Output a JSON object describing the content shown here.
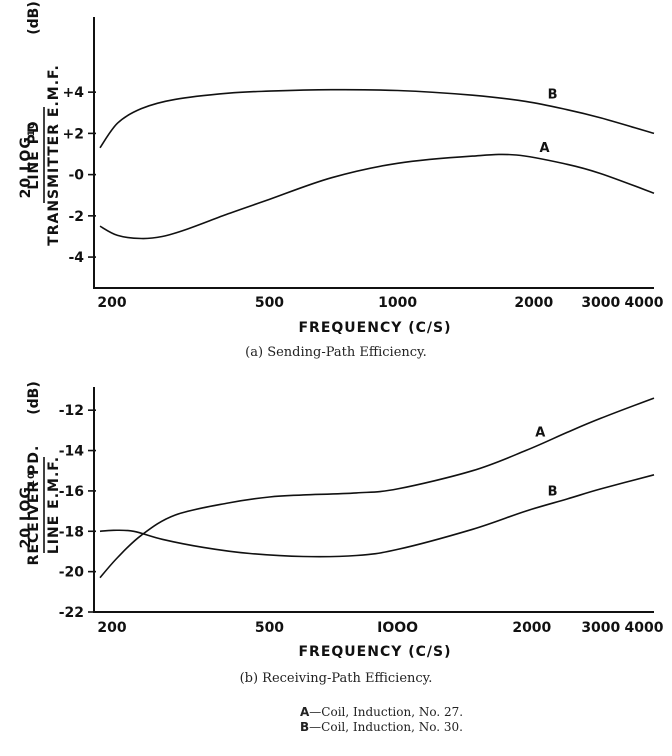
{
  "chart_data": [
    {
      "type": "line",
      "caption": "(a) Sending-Path Efficiency.",
      "xlabel": "FREQUENCY (C/S)",
      "ylabel": {
        "prefix": "20 LOG",
        "sub": "10",
        "numerator": "LINE PD",
        "denominator": "TRANSMITTER E.M.F.",
        "unit": "(dB)"
      },
      "xscale": "log",
      "xlim": [
        200,
        4000
      ],
      "ylim": [
        -5.5,
        7.5
      ],
      "xticks": [
        200,
        500,
        1000,
        2000,
        3000,
        4000
      ],
      "xtick_labels": [
        "200",
        "500",
        "1000",
        "2000",
        "3000",
        "4000"
      ],
      "yticks": [
        4,
        2,
        0,
        -2,
        -4
      ],
      "ytick_labels": [
        "+4",
        "+2",
        "-0",
        "-2",
        "-4"
      ],
      "grid": false,
      "series": [
        {
          "name": "A",
          "x": [
            200,
            220,
            250,
            280,
            320,
            400,
            500,
            700,
            1000,
            1500,
            1900,
            2500,
            3000,
            4000
          ],
          "y": [
            -2.5,
            -2.95,
            -3.1,
            -3.0,
            -2.65,
            -1.9,
            -1.2,
            -0.15,
            0.55,
            0.9,
            0.95,
            0.5,
            0.05,
            -0.9
          ]
        },
        {
          "name": "B",
          "x": [
            200,
            220,
            250,
            300,
            400,
            500,
            700,
            1000,
            1500,
            2000,
            2500,
            3000,
            4000
          ],
          "y": [
            1.3,
            2.5,
            3.2,
            3.65,
            3.95,
            4.05,
            4.12,
            4.08,
            3.85,
            3.55,
            3.15,
            2.75,
            2.0
          ]
        }
      ]
    },
    {
      "type": "line",
      "caption": "(b) Receiving-Path Efficiency.",
      "xlabel": "FREQUENCY (C/S)",
      "ylabel": {
        "prefix": "20 LOG",
        "sub": "10",
        "numerator": "RECEIVER PD.",
        "denominator": "LINE E.M.F.",
        "unit": "(dB)"
      },
      "xscale": "log",
      "xlim": [
        200,
        4000
      ],
      "ylim": [
        -22,
        -11
      ],
      "xticks": [
        200,
        500,
        1000,
        2000,
        3000,
        4000
      ],
      "xtick_labels": [
        "200",
        "500",
        "IOOO",
        "2000",
        "3000",
        "4000"
      ],
      "yticks": [
        -12,
        -14,
        -16,
        -18,
        -20,
        -22
      ],
      "ytick_labels": [
        "-12",
        "-14",
        "-16",
        "-18",
        "-20",
        "-22"
      ],
      "grid": false,
      "series": [
        {
          "name": "A",
          "x": [
            200,
            220,
            250,
            300,
            400,
            500,
            600,
            800,
            1000,
            1500,
            2000,
            2500,
            3000,
            4000
          ],
          "y": [
            -20.3,
            -19.3,
            -18.2,
            -17.2,
            -16.6,
            -16.3,
            -16.2,
            -16.1,
            -15.9,
            -15.0,
            -14.0,
            -13.1,
            -12.4,
            -11.4
          ]
        },
        {
          "name": "B",
          "x": [
            200,
            215,
            240,
            280,
            350,
            450,
            600,
            800,
            1000,
            1500,
            2000,
            2500,
            3000,
            4000
          ],
          "y": [
            -18.0,
            -17.95,
            -18.0,
            -18.4,
            -18.8,
            -19.1,
            -19.25,
            -19.2,
            -18.9,
            -17.9,
            -17.0,
            -16.4,
            -15.9,
            -15.2
          ]
        }
      ]
    }
  ],
  "legend": [
    {
      "key": "A",
      "text": "—Coil, Induction, No. 27."
    },
    {
      "key": "B",
      "text": "—Coil, Induction, No. 30."
    }
  ]
}
